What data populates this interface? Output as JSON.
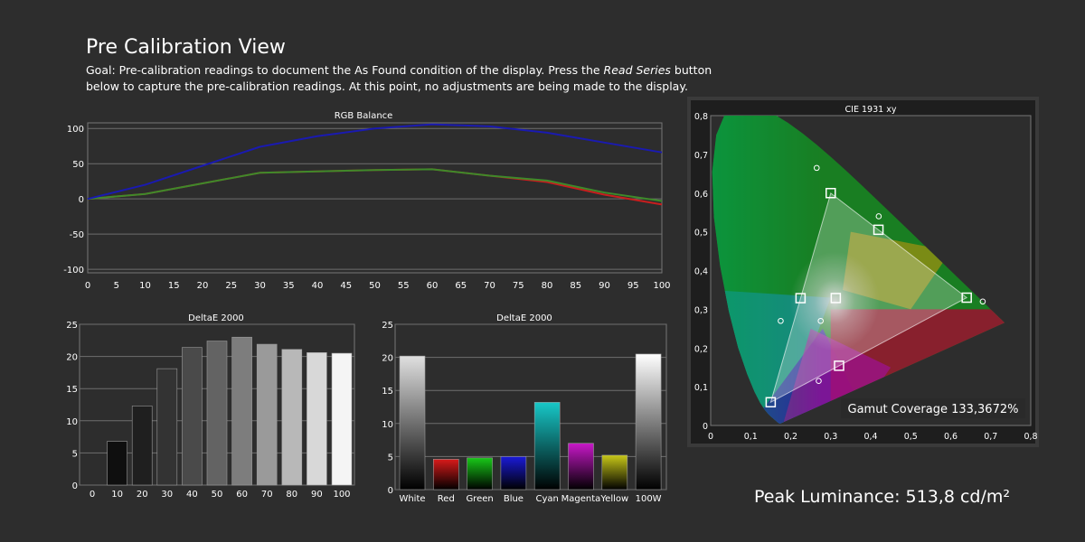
{
  "page": {
    "title": "Pre Calibration View",
    "goal_prefix": "Goal: Pre-calibration readings to document the As Found condition of the display. Press the ",
    "goal_button": "Read Series",
    "goal_suffix": " button below to capture the pre-calibration readings. At this point, no adjustments are being made to the display.",
    "peak_luminance": "Peak Luminance: 513,8 cd/m²"
  },
  "colors": {
    "background": "#2d2d2d",
    "plot_background": "#2d2d2d",
    "red": "#c81e1e",
    "green": "#3e8a2a",
    "blue": "#1a1ab0"
  },
  "chart_data": [
    {
      "id": "rgb_balance",
      "type": "line",
      "title": "RGB Balance",
      "x": [
        0,
        10,
        20,
        30,
        40,
        50,
        60,
        70,
        80,
        90,
        100
      ],
      "xticks": [
        "0",
        "5",
        "10",
        "15",
        "20",
        "25",
        "30",
        "35",
        "40",
        "45",
        "50",
        "55",
        "60",
        "65",
        "70",
        "75",
        "80",
        "85",
        "90",
        "95",
        "100"
      ],
      "yticks": [
        "100",
        "50",
        "0",
        "-50",
        "-100"
      ],
      "xlim": [
        0,
        100
      ],
      "ylim": [
        -105,
        108
      ],
      "series": [
        {
          "color": "#c81e1e",
          "values": [
            0,
            7,
            22,
            37,
            39,
            41,
            42,
            33,
            24,
            6,
            -8
          ]
        },
        {
          "color": "#3e8a2a",
          "values": [
            0,
            7,
            22,
            37,
            39,
            41,
            42,
            33,
            26,
            9,
            -3
          ]
        },
        {
          "color": "#1a1ab0",
          "values": [
            0,
            20,
            47,
            74,
            89,
            100,
            106,
            103,
            94,
            80,
            66
          ]
        }
      ]
    },
    {
      "id": "deltae_grayscale",
      "type": "bar",
      "title": "DeltaE 2000",
      "categories": [
        "0",
        "10",
        "20",
        "30",
        "40",
        "50",
        "60",
        "70",
        "80",
        "90",
        "100"
      ],
      "values": [
        0,
        6.8,
        12.3,
        18.1,
        21.4,
        22.4,
        23,
        21.9,
        21.1,
        20.6,
        20.5
      ],
      "yticks": [
        "25",
        "20",
        "15",
        "10",
        "5",
        "0"
      ],
      "ylim": [
        0,
        25
      ],
      "bar_colors": [
        "#000000",
        "#0f0f0f",
        "#1f1f1f",
        "#333333",
        "#4a4a4a",
        "#636363",
        "#7d7d7d",
        "#9a9a9a",
        "#b8b8b8",
        "#d8d8d8",
        "#f5f5f5"
      ]
    },
    {
      "id": "deltae_colors",
      "type": "bar",
      "title": "DeltaE 2000",
      "categories": [
        "White",
        "Red",
        "Green",
        "Blue",
        "Cyan",
        "Magenta",
        "Yellow",
        "100W"
      ],
      "values": [
        20.2,
        4.6,
        4.8,
        5,
        13.2,
        7,
        5.2,
        20.5
      ],
      "yticks": [
        "25",
        "20",
        "15",
        "10",
        "5",
        "0"
      ],
      "ylim": [
        0,
        25
      ],
      "bar_colors": [
        "#e0e0e0",
        "#d81a1a",
        "#18c818",
        "#1a1ad8",
        "#18c8c8",
        "#c818c8",
        "#c8c818",
        "#ffffff"
      ]
    },
    {
      "id": "cie_1931",
      "type": "scatter",
      "title": "CIE 1931 xy",
      "xticks": [
        "0",
        "0,1",
        "0,2",
        "0,3",
        "0,4",
        "0,5",
        "0,6",
        "0,7",
        "0,8"
      ],
      "yticks": [
        "0,8",
        "0,7",
        "0,6",
        "0,5",
        "0,4",
        "0,3",
        "0,2",
        "0,1",
        "0"
      ],
      "xlim": [
        0,
        0.8
      ],
      "ylim": [
        0,
        0.8
      ],
      "target_points": [
        {
          "x": 0.3127,
          "y": 0.329
        },
        {
          "x": 0.64,
          "y": 0.33
        },
        {
          "x": 0.3,
          "y": 0.6
        },
        {
          "x": 0.15,
          "y": 0.06
        },
        {
          "x": 0.2246,
          "y": 0.3287
        },
        {
          "x": 0.3209,
          "y": 0.1542
        },
        {
          "x": 0.4193,
          "y": 0.5053
        }
      ],
      "measured_points": [
        {
          "x": 0.275,
          "y": 0.27
        },
        {
          "x": 0.68,
          "y": 0.32
        },
        {
          "x": 0.265,
          "y": 0.665
        },
        {
          "x": 0.175,
          "y": 0.27
        },
        {
          "x": 0.27,
          "y": 0.115
        },
        {
          "x": 0.42,
          "y": 0.54
        }
      ],
      "gamut_coverage": "Gamut Coverage 133,3672%"
    }
  ]
}
